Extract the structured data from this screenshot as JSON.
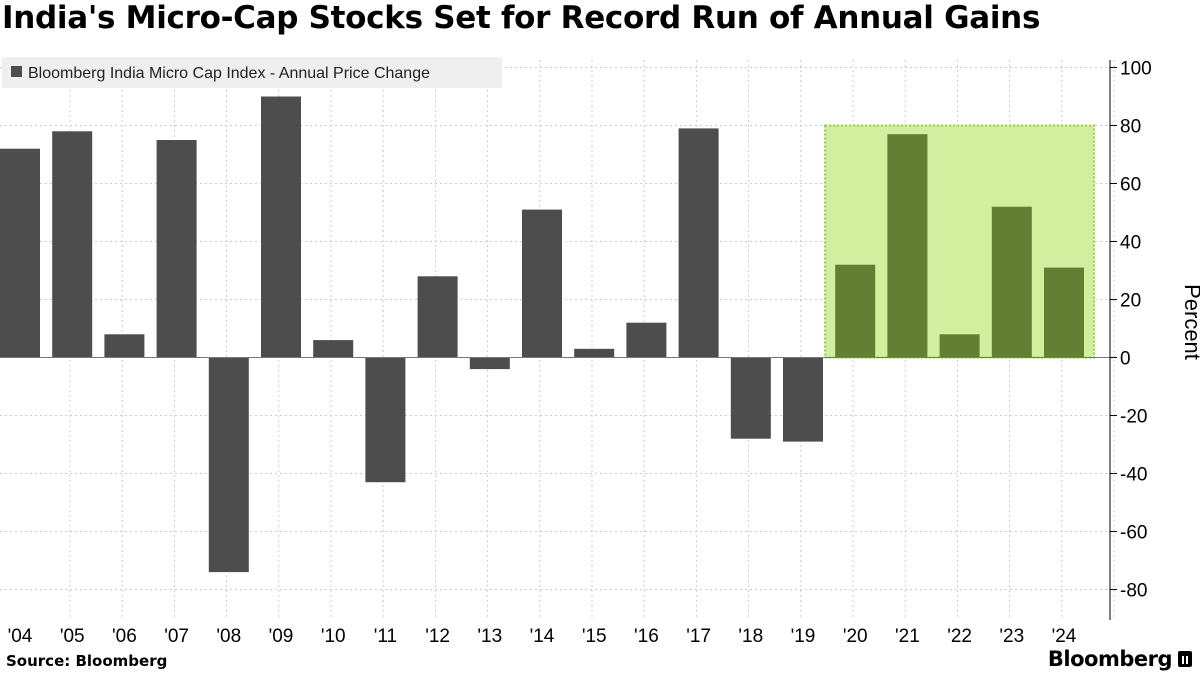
{
  "title": "India's Micro-Cap Stocks Set for Record Run of Annual Gains",
  "source": "Source: Bloomberg",
  "brand": "Bloomberg",
  "colors": {
    "bar": "#4d4d4d",
    "highlight_bar": "#627f33",
    "highlight_fill": "#d1ef9f",
    "highlight_border": "#8fd13a",
    "grid": "#cccccc"
  },
  "chart_data": {
    "type": "bar",
    "title": "India's Micro-Cap Stocks Set for Record Run of Annual Gains",
    "legend": "Bloomberg India Micro Cap Index - Annual Price Change",
    "legend_position": "top-left",
    "ylabel": "Percent",
    "y_axis_side": "right",
    "ylim": [
      -90,
      103
    ],
    "yticks": [
      100,
      80,
      60,
      40,
      20,
      0,
      -20,
      -40,
      -60,
      -80
    ],
    "grid": true,
    "categories": [
      "'04",
      "'05",
      "'06",
      "'07",
      "'08",
      "'09",
      "'10",
      "'11",
      "'12",
      "'13",
      "'14",
      "'15",
      "'16",
      "'17",
      "'18",
      "'19",
      "'20",
      "'21",
      "'22",
      "'23",
      "'24"
    ],
    "values": [
      72,
      78,
      8,
      75,
      -74,
      90,
      6,
      -43,
      28,
      -4,
      51,
      3,
      12,
      79,
      -28,
      -29,
      32,
      77,
      8,
      52,
      31
    ],
    "highlight": {
      "start": "'20",
      "end": "'24",
      "ymin": 0,
      "ymax": 80
    }
  }
}
